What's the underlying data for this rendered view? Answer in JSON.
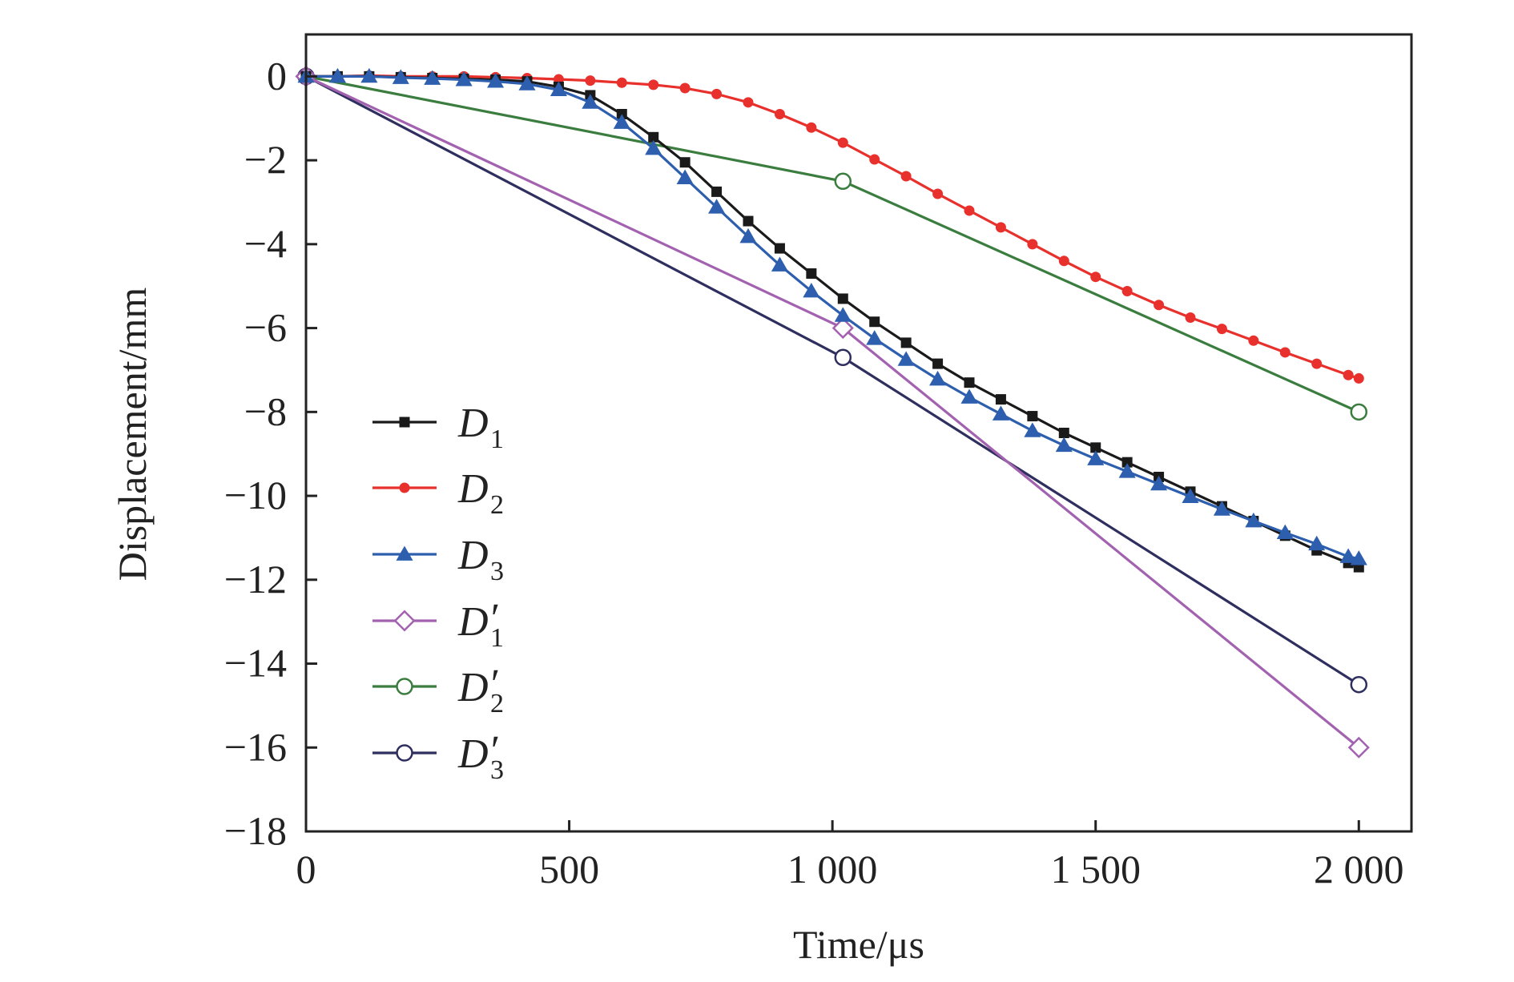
{
  "chart_data": {
    "type": "line",
    "title": "",
    "xlabel": "Time/μs",
    "ylabel": "Displacement/mm",
    "xlim": [
      0,
      2100
    ],
    "ylim": [
      -18,
      1
    ],
    "xticks": [
      0,
      500,
      1000,
      1500,
      2000
    ],
    "xtick_labels": [
      "0",
      "500",
      "1 000",
      "1 500",
      "2 000"
    ],
    "yticks": [
      0,
      -2,
      -4,
      -6,
      -8,
      -10,
      -12,
      -14,
      -16,
      -18
    ],
    "ytick_labels": [
      "0",
      "−2",
      "−4",
      "−6",
      "−8",
      "−10",
      "−12",
      "−14",
      "−16",
      "−18"
    ],
    "grid": false,
    "legend_position": "left-middle",
    "series": [
      {
        "name": "D1",
        "legend_main": "D",
        "legend_sub": "1",
        "legend_prime": "",
        "color": "#1a1a1a",
        "marker": "square",
        "marker_fill": "filled",
        "x": [
          0,
          60,
          120,
          180,
          240,
          300,
          360,
          420,
          480,
          540,
          600,
          660,
          720,
          780,
          840,
          900,
          960,
          1020,
          1080,
          1140,
          1200,
          1260,
          1320,
          1380,
          1440,
          1500,
          1560,
          1620,
          1680,
          1740,
          1800,
          1860,
          1920,
          1980,
          2000
        ],
        "y": [
          0,
          0,
          0,
          -0.02,
          -0.04,
          -0.06,
          -0.08,
          -0.12,
          -0.25,
          -0.45,
          -0.9,
          -1.45,
          -2.05,
          -2.75,
          -3.45,
          -4.1,
          -4.7,
          -5.3,
          -5.85,
          -6.35,
          -6.85,
          -7.3,
          -7.7,
          -8.1,
          -8.5,
          -8.85,
          -9.2,
          -9.55,
          -9.9,
          -10.25,
          -10.6,
          -10.95,
          -11.3,
          -11.6,
          -11.7
        ]
      },
      {
        "name": "D2",
        "legend_main": "D",
        "legend_sub": "2",
        "legend_prime": "",
        "color": "#e8302c",
        "marker": "circle",
        "marker_fill": "filled",
        "x": [
          0,
          60,
          120,
          180,
          240,
          300,
          360,
          420,
          480,
          540,
          600,
          660,
          720,
          780,
          840,
          900,
          960,
          1020,
          1080,
          1140,
          1200,
          1260,
          1320,
          1380,
          1440,
          1500,
          1560,
          1620,
          1680,
          1740,
          1800,
          1860,
          1920,
          1980,
          2000
        ],
        "y": [
          0,
          0,
          0.02,
          0,
          0,
          0,
          -0.02,
          -0.04,
          -0.07,
          -0.1,
          -0.15,
          -0.2,
          -0.28,
          -0.42,
          -0.62,
          -0.9,
          -1.22,
          -1.58,
          -1.98,
          -2.38,
          -2.8,
          -3.2,
          -3.6,
          -4.0,
          -4.4,
          -4.78,
          -5.12,
          -5.45,
          -5.75,
          -6.02,
          -6.3,
          -6.58,
          -6.85,
          -7.12,
          -7.2
        ]
      },
      {
        "name": "D3",
        "legend_main": "D",
        "legend_sub": "3",
        "legend_prime": "",
        "color": "#2d5fae",
        "marker": "triangle",
        "marker_fill": "filled",
        "x": [
          0,
          60,
          120,
          180,
          240,
          300,
          360,
          420,
          480,
          540,
          600,
          660,
          720,
          780,
          840,
          900,
          960,
          1020,
          1080,
          1140,
          1200,
          1260,
          1320,
          1380,
          1440,
          1500,
          1560,
          1620,
          1680,
          1740,
          1800,
          1860,
          1920,
          1980,
          2000
        ],
        "y": [
          0,
          0,
          0,
          -0.03,
          -0.05,
          -0.08,
          -0.12,
          -0.18,
          -0.32,
          -0.62,
          -1.1,
          -1.72,
          -2.42,
          -3.12,
          -3.82,
          -4.5,
          -5.12,
          -5.7,
          -6.25,
          -6.75,
          -7.22,
          -7.65,
          -8.05,
          -8.45,
          -8.8,
          -9.12,
          -9.42,
          -9.72,
          -10.02,
          -10.32,
          -10.6,
          -10.88,
          -11.15,
          -11.45,
          -11.5
        ]
      },
      {
        "name": "D′1",
        "legend_main": "D",
        "legend_sub": "1",
        "legend_prime": "′",
        "color": "#a362b0",
        "marker": "diamond",
        "marker_fill": "open",
        "x": [
          0,
          1020,
          2000
        ],
        "y": [
          0,
          -6.0,
          -16.0
        ]
      },
      {
        "name": "D′2",
        "legend_main": "D",
        "legend_sub": "2",
        "legend_prime": "′",
        "color": "#3a7d3f",
        "marker": "circle",
        "marker_fill": "open",
        "x": [
          0,
          1020,
          2000
        ],
        "y": [
          0,
          -2.5,
          -8.0
        ]
      },
      {
        "name": "D′3",
        "legend_main": "D",
        "legend_sub": "3",
        "legend_prime": "′",
        "color": "#2e2f5e",
        "marker": "circle",
        "marker_fill": "open",
        "x": [
          0,
          1020,
          2000
        ],
        "y": [
          0,
          -6.7,
          -14.5
        ]
      }
    ]
  }
}
